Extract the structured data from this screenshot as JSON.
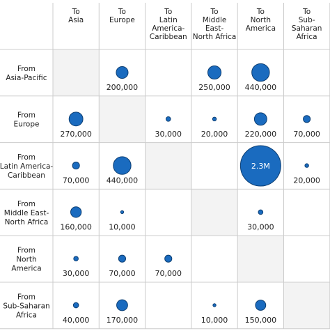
{
  "chart_data": {
    "type": "bubble-matrix",
    "columns": [
      "To\nAsia",
      "To\nEurope",
      "To\nLatin\nAmerica-\nCaribbean",
      "To\nMiddle\nEast-\nNorth Africa",
      "To\nNorth\nAmerica",
      "To\nSub-\nSaharan\nAfrica"
    ],
    "rows": [
      "From\nAsia-Pacific",
      "From\nEurope",
      "From\nLatin America-\nCaribbean",
      "From\nMiddle East-\nNorth Africa",
      "From\nNorth\nAmerica",
      "From\nSub-Saharan\nAfrica"
    ],
    "values": [
      [
        null,
        200000,
        null,
        250000,
        440000,
        null
      ],
      [
        270000,
        null,
        30000,
        20000,
        220000,
        70000
      ],
      [
        70000,
        440000,
        null,
        null,
        2300000,
        20000
      ],
      [
        160000,
        10000,
        null,
        null,
        30000,
        null
      ],
      [
        30000,
        70000,
        70000,
        null,
        null,
        null
      ],
      [
        40000,
        170000,
        null,
        10000,
        150000,
        null
      ]
    ],
    "labels": [
      [
        null,
        "200,000",
        null,
        "250,000",
        "440,000",
        null
      ],
      [
        "270,000",
        null,
        "30,000",
        "20,000",
        "220,000",
        "70,000"
      ],
      [
        "70,000",
        "440,000",
        null,
        null,
        "2.3M",
        "20,000"
      ],
      [
        "160,000",
        "10,000",
        null,
        null,
        "30,000",
        null
      ],
      [
        "30,000",
        "70,000",
        "70,000",
        null,
        null,
        null
      ],
      [
        "40,000",
        "170,000",
        null,
        "10,000",
        "150,000",
        null
      ]
    ],
    "diagonal_shaded": true,
    "bubble_color": "#1a6bbf",
    "shade_color": "#f3f3f3",
    "grid_color": "#cccccc"
  }
}
